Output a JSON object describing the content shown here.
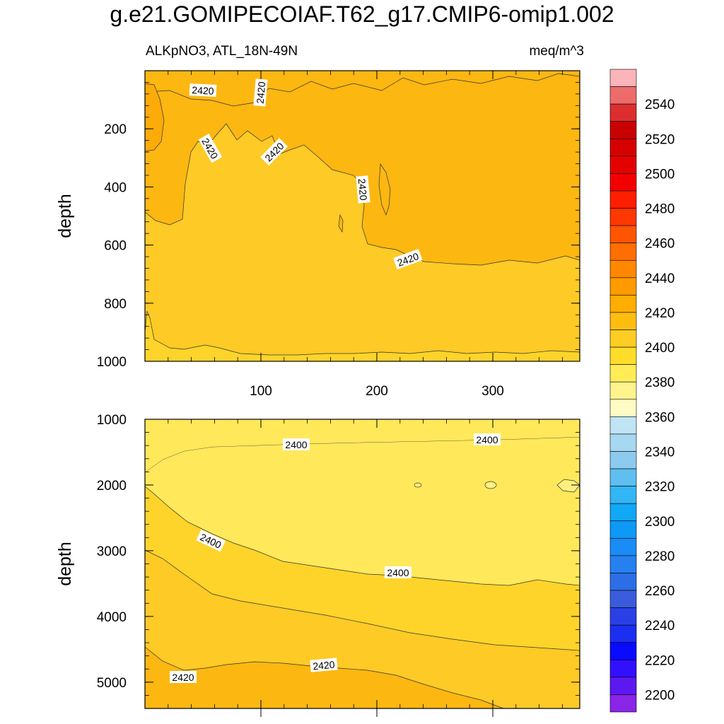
{
  "header": {
    "title": "g.e21.GOMIPECOIAF.T62_g17.CMIP6-omip1.002",
    "subtitle": "ALKpNO3, ATL_18N-49N",
    "units": "meq/m^3"
  },
  "chart_data": [
    {
      "type": "heatmap",
      "panel": "upper",
      "ylabel": "depth",
      "y_reversed": true,
      "ylim": [
        0,
        1000
      ],
      "xlim": [
        0,
        375
      ],
      "yticks": [
        "200",
        "400",
        "600",
        "800",
        "1000"
      ],
      "xticks": [
        "100",
        "200",
        "300"
      ],
      "contour_labels": [
        "2420",
        "2420",
        "2420",
        "2420",
        "2420",
        "2420"
      ]
    },
    {
      "type": "heatmap",
      "panel": "lower",
      "ylabel": "depth",
      "y_reversed": true,
      "ylim": [
        1000,
        5400
      ],
      "xlim": [
        0,
        375
      ],
      "yticks": [
        "1000",
        "2000",
        "3000",
        "4000",
        "5000"
      ],
      "contour_labels": [
        "2400",
        "2400",
        "2400",
        "2400",
        "2420",
        "2420"
      ]
    }
  ],
  "colorbar": {
    "labels": [
      "2540",
      "2520",
      "2500",
      "2480",
      "2460",
      "2440",
      "2420",
      "2400",
      "2380",
      "2360",
      "2340",
      "2320",
      "2300",
      "2280",
      "2260",
      "2240",
      "2220",
      "2200"
    ],
    "colors": [
      "#fbb4b9",
      "#ee6b6b",
      "#dc2e2e",
      "#c80000",
      "#d70000",
      "#e50000",
      "#f20000",
      "#ff1e00",
      "#ff3700",
      "#ff5500",
      "#ff6e00",
      "#ff8800",
      "#ff9a00",
      "#ffad00",
      "#ffbe0f",
      "#fdcd23",
      "#fedc2a",
      "#ffec57",
      "#fff38e",
      "#fffbc4",
      "#bfe5f5",
      "#a6d8f2",
      "#8ccbef",
      "#5fbff0",
      "#32b6f5",
      "#11a8f5",
      "#0d99f5",
      "#1a8cf5",
      "#2680f0",
      "#2c6ee6",
      "#3a5cdc",
      "#2a40e6",
      "#1a2ff0",
      "#0a0aff",
      "#3210ff",
      "#5d18f0",
      "#8a24e6"
    ]
  }
}
